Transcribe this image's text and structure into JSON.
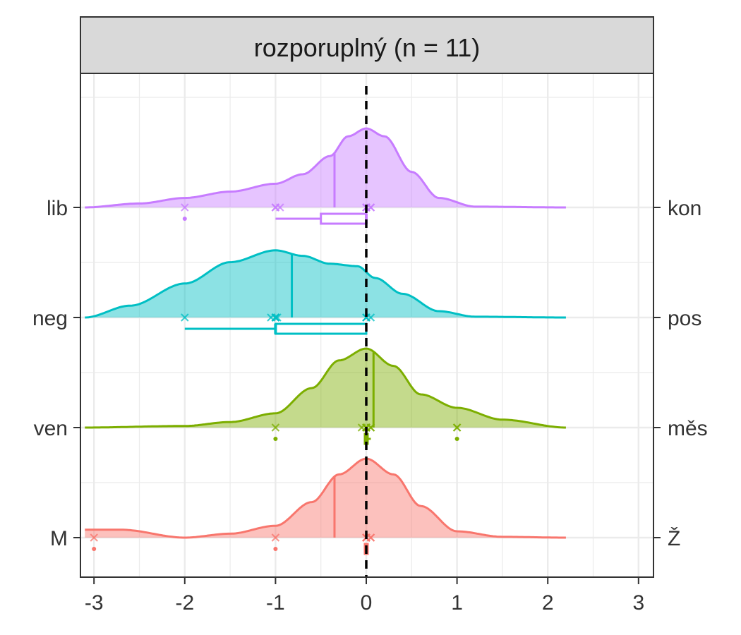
{
  "chart_data": {
    "type": "ridgeline",
    "title": "rozporuplný (n = 11)",
    "xlabel": "",
    "ylabel": "",
    "xlim": [
      -3.1,
      3.1
    ],
    "x_ticks": [
      "-3",
      "-2",
      "-1",
      "0",
      "1",
      "2",
      "3"
    ],
    "reference_line_x": 0,
    "grid": true,
    "colors": {
      "lib_kon": "#C77CFF",
      "neg_pos": "#00BFC4",
      "ven_mes": "#7CAE00",
      "m_z": "#F8766D"
    },
    "series": [
      {
        "left_label": "lib",
        "right_label": "kon",
        "color_key": "lib_kon",
        "density_x": [
          -3.1,
          -2.5,
          -2.0,
          -1.5,
          -1.0,
          -0.7,
          -0.4,
          -0.2,
          0.0,
          0.2,
          0.5,
          0.8,
          1.2,
          2.2
        ],
        "density_y": [
          0.0,
          0.05,
          0.12,
          0.2,
          0.3,
          0.42,
          0.65,
          0.9,
          1.0,
          0.9,
          0.45,
          0.12,
          0.01,
          0.0
        ],
        "median_line_x": -0.35,
        "points": [
          -2,
          -1,
          -1,
          -0.95,
          0,
          0,
          0,
          0,
          0,
          0.05,
          0.05
        ],
        "outliers": [
          -2
        ],
        "box": {
          "whisker_low": -1,
          "q1": -0.5,
          "median": 0,
          "q3": 0,
          "whisker_high": 0
        }
      },
      {
        "left_label": "neg",
        "right_label": "pos",
        "color_key": "neg_pos",
        "density_x": [
          -3.1,
          -2.6,
          -2.0,
          -1.5,
          -1.0,
          -0.7,
          -0.4,
          -0.1,
          0.1,
          0.4,
          0.8,
          1.2,
          2.2
        ],
        "density_y": [
          0.0,
          0.15,
          0.43,
          0.7,
          0.85,
          0.78,
          0.68,
          0.65,
          0.5,
          0.3,
          0.08,
          0.01,
          0.0
        ],
        "median_line_x": -0.82,
        "points": [
          -2,
          -1.05,
          -1,
          -1,
          -1,
          -1,
          -0.98,
          0,
          0,
          0,
          0.05
        ],
        "outliers": [],
        "box": {
          "whisker_low": -2,
          "q1": -1,
          "median": -1,
          "q3": 0,
          "whisker_high": 0
        }
      },
      {
        "left_label": "ven",
        "right_label": "měs",
        "color_key": "ven_mes",
        "density_x": [
          -3.1,
          -2.0,
          -1.5,
          -1.0,
          -0.6,
          -0.3,
          0.0,
          0.3,
          0.6,
          1.0,
          1.5,
          2.2
        ],
        "density_y": [
          0.0,
          0.02,
          0.07,
          0.18,
          0.5,
          0.85,
          1.0,
          0.78,
          0.42,
          0.25,
          0.1,
          0.0
        ],
        "median_line_x": 0.08,
        "points": [
          -1,
          -0.05,
          0,
          0,
          0,
          0,
          0,
          0.05,
          0.05,
          1,
          1
        ],
        "outliers": [
          -1,
          1
        ],
        "box": {
          "whisker_low": 0,
          "q1": 0,
          "median": 0,
          "q3": 0,
          "whisker_high": 0.05
        }
      },
      {
        "left_label": "M",
        "right_label": "Ž",
        "color_key": "m_z",
        "density_x": [
          -3.1,
          -2.7,
          -2.0,
          -1.5,
          -1.0,
          -0.6,
          -0.3,
          0.0,
          0.3,
          0.6,
          1.0,
          1.5,
          2.2
        ],
        "density_y": [
          0.1,
          0.1,
          0.0,
          0.05,
          0.15,
          0.45,
          0.8,
          1.0,
          0.8,
          0.4,
          0.08,
          0.01,
          0.0
        ],
        "median_line_x": -0.35,
        "points": [
          -3,
          -1,
          0,
          0,
          0,
          0,
          0,
          0,
          0,
          0.05,
          0.05
        ],
        "outliers": [
          -3,
          -1
        ],
        "box": {
          "whisker_low": 0,
          "q1": 0,
          "median": 0,
          "q3": 0,
          "whisker_high": 0
        }
      }
    ]
  }
}
